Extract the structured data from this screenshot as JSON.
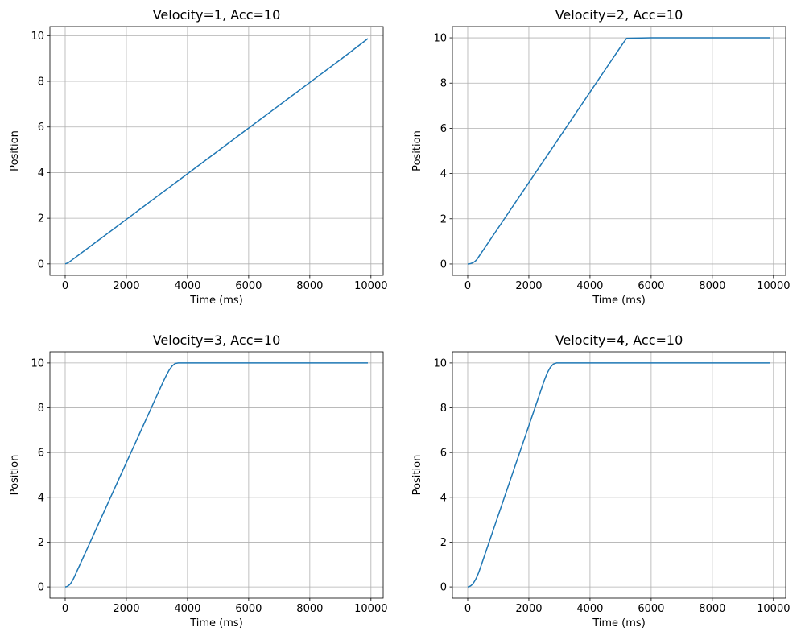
{
  "figure": {
    "line_color": "#1f77b4",
    "grid_color": "#b0b0b0",
    "grid": true
  },
  "chart_data": [
    {
      "type": "line",
      "title": "Velocity=1, Acc=10",
      "xlabel": "Time (ms)",
      "ylabel": "Position",
      "xlim": [
        -500,
        10400
      ],
      "ylim": [
        -0.5,
        10.4
      ],
      "xticks": [
        0,
        2000,
        4000,
        6000,
        8000,
        10000
      ],
      "yticks": [
        0,
        2,
        4,
        6,
        8,
        10
      ],
      "xtick_labels": [
        "0",
        "2000",
        "4000",
        "6000",
        "8000",
        "10000"
      ],
      "ytick_labels": [
        "0",
        "2",
        "4",
        "6",
        "8",
        "10"
      ],
      "series": [
        {
          "x": [
            0,
            100,
            200,
            1000,
            2000,
            3000,
            4000,
            5000,
            6000,
            7000,
            8000,
            9000,
            9900
          ],
          "values": [
            0,
            0.05,
            0.15,
            0.95,
            1.95,
            2.95,
            3.95,
            4.95,
            5.95,
            6.95,
            7.95,
            8.95,
            9.87
          ]
        }
      ]
    },
    {
      "type": "line",
      "title": "Velocity=2, Acc=10",
      "xlabel": "Time (ms)",
      "ylabel": "Position",
      "xlim": [
        -500,
        10400
      ],
      "ylim": [
        -0.5,
        10.5
      ],
      "xticks": [
        0,
        2000,
        4000,
        6000,
        8000,
        10000
      ],
      "yticks": [
        0,
        2,
        4,
        6,
        8,
        10
      ],
      "xtick_labels": [
        "0",
        "2000",
        "4000",
        "6000",
        "8000",
        "10000"
      ],
      "ytick_labels": [
        "0",
        "2",
        "4",
        "6",
        "8",
        "10"
      ],
      "series": [
        {
          "x": [
            0,
            50,
            100,
            150,
            200,
            250,
            300,
            1000,
            2000,
            3000,
            4000,
            4700,
            4800,
            4900,
            5000,
            5100,
            5200,
            6000,
            8000,
            9900
          ],
          "values": [
            0,
            0.005,
            0.02,
            0.045,
            0.08,
            0.13,
            0.2,
            1.6,
            3.6,
            5.6,
            7.6,
            9.0,
            9.2,
            9.4,
            9.6,
            9.8,
            9.98,
            10.0,
            10.0,
            10.0
          ]
        }
      ]
    },
    {
      "type": "line",
      "title": "Velocity=3, Acc=10",
      "xlabel": "Time (ms)",
      "ylabel": "Position",
      "xlim": [
        -500,
        10400
      ],
      "ylim": [
        -0.5,
        10.5
      ],
      "xticks": [
        0,
        2000,
        4000,
        6000,
        8000,
        10000
      ],
      "yticks": [
        0,
        2,
        4,
        6,
        8,
        10
      ],
      "xtick_labels": [
        "0",
        "2000",
        "4000",
        "6000",
        "8000",
        "10000"
      ],
      "ytick_labels": [
        "0",
        "2",
        "4",
        "6",
        "8",
        "10"
      ],
      "series": [
        {
          "x": [
            0,
            50,
            100,
            150,
            200,
            250,
            300,
            400,
            500,
            1000,
            2000,
            3000,
            3200,
            3300,
            3400,
            3500,
            3600,
            3700,
            4000,
            6000,
            8000,
            9900
          ],
          "values": [
            0,
            0.0125,
            0.05,
            0.11,
            0.2,
            0.31,
            0.45,
            0.75,
            1.05,
            2.55,
            5.55,
            8.55,
            9.15,
            9.43,
            9.68,
            9.87,
            9.98,
            10.0,
            10.0,
            10.0,
            10.0,
            10.0
          ]
        }
      ]
    },
    {
      "type": "line",
      "title": "Velocity=4, Acc=10",
      "xlabel": "Time (ms)",
      "ylabel": "Position",
      "xlim": [
        -500,
        10400
      ],
      "ylim": [
        -0.5,
        10.5
      ],
      "xticks": [
        0,
        2000,
        4000,
        6000,
        8000,
        10000
      ],
      "yticks": [
        0,
        2,
        4,
        6,
        8,
        10
      ],
      "xtick_labels": [
        "0",
        "2000",
        "4000",
        "6000",
        "8000",
        "10000"
      ],
      "ytick_labels": [
        "0",
        "2",
        "4",
        "6",
        "8",
        "10"
      ],
      "series": [
        {
          "x": [
            0,
            50,
            100,
            150,
            200,
            250,
            300,
            350,
            400,
            500,
            1000,
            2000,
            2500,
            2600,
            2700,
            2800,
            2900,
            3000,
            4000,
            6000,
            8000,
            9900
          ],
          "values": [
            0,
            0.0125,
            0.05,
            0.11,
            0.2,
            0.31,
            0.45,
            0.61,
            0.8,
            1.2,
            3.2,
            7.2,
            9.2,
            9.55,
            9.8,
            9.95,
            10.0,
            10.0,
            10.0,
            10.0,
            10.0,
            10.0
          ]
        }
      ]
    }
  ]
}
